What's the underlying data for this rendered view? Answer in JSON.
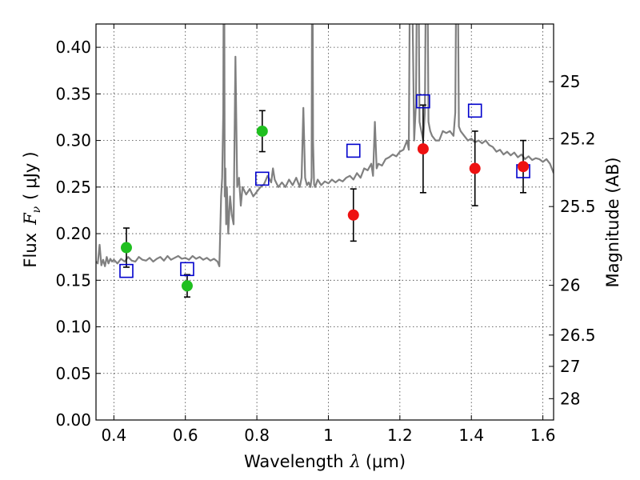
{
  "chart_data": {
    "type": "scatter",
    "title": "",
    "xlabel": "Wavelength",
    "xlabel_symbol": "λ",
    "xlabel_unit": "(μm)",
    "ylabel": "Flux",
    "ylabel_symbol": "F",
    "ylabel_subscript": "ν",
    "ylabel_unit": "μJy",
    "ylabel_right": "Magnitude (AB)",
    "xlim": [
      0.35,
      1.63
    ],
    "ylim": [
      0.0,
      0.425
    ],
    "grid": true,
    "x_ticks": [
      0.4,
      0.6,
      0.8,
      1.0,
      1.2,
      1.4,
      1.6
    ],
    "x_tick_labels": [
      "0.4",
      "0.6",
      "0.8",
      "1",
      "1.2",
      "1.4",
      "1.6"
    ],
    "y_ticks": [
      0.0,
      0.05,
      0.1,
      0.15,
      0.2,
      0.25,
      0.3,
      0.35,
      0.4
    ],
    "y_tick_labels": [
      "0.00",
      "0.05",
      "0.10",
      "0.15",
      "0.20",
      "0.25",
      "0.30",
      "0.35",
      "0.40"
    ],
    "mag_ticks": [
      25,
      25.2,
      25.5,
      26,
      26.5,
      27,
      28
    ],
    "mag_tick_labels": [
      "25",
      "25.2",
      "25.5",
      "26",
      "26.5",
      "27",
      "28"
    ],
    "colors": {
      "spectrum": "#808080",
      "green": "#1fbf1f",
      "red": "#ee1111",
      "model": "#0000cc",
      "errorbar": "#000000"
    },
    "series": [
      {
        "name": "Model spectrum",
        "kind": "line",
        "x": [
          0.35,
          0.355,
          0.36,
          0.365,
          0.37,
          0.375,
          0.38,
          0.385,
          0.39,
          0.395,
          0.4,
          0.41,
          0.42,
          0.43,
          0.44,
          0.45,
          0.46,
          0.47,
          0.48,
          0.49,
          0.5,
          0.51,
          0.52,
          0.53,
          0.54,
          0.55,
          0.56,
          0.57,
          0.58,
          0.59,
          0.6,
          0.61,
          0.62,
          0.63,
          0.64,
          0.65,
          0.66,
          0.67,
          0.68,
          0.69,
          0.695,
          0.7,
          0.703,
          0.706,
          0.708,
          0.71,
          0.712,
          0.714,
          0.716,
          0.72,
          0.725,
          0.73,
          0.735,
          0.74,
          0.745,
          0.75,
          0.755,
          0.76,
          0.77,
          0.78,
          0.79,
          0.8,
          0.81,
          0.82,
          0.83,
          0.84,
          0.845,
          0.85,
          0.86,
          0.87,
          0.88,
          0.89,
          0.9,
          0.91,
          0.92,
          0.925,
          0.93,
          0.935,
          0.94,
          0.945,
          0.95,
          0.953,
          0.955,
          0.957,
          0.96,
          0.963,
          0.97,
          0.98,
          0.99,
          1.0,
          1.01,
          1.02,
          1.03,
          1.04,
          1.05,
          1.06,
          1.07,
          1.08,
          1.09,
          1.1,
          1.11,
          1.12,
          1.125,
          1.13,
          1.135,
          1.14,
          1.15,
          1.16,
          1.17,
          1.18,
          1.19,
          1.2,
          1.21,
          1.22,
          1.225,
          1.23,
          1.24,
          1.245,
          1.25,
          1.255,
          1.26,
          1.265,
          1.27,
          1.275,
          1.28,
          1.285,
          1.29,
          1.3,
          1.31,
          1.32,
          1.33,
          1.34,
          1.35,
          1.355,
          1.36,
          1.365,
          1.37,
          1.38,
          1.39,
          1.4,
          1.41,
          1.42,
          1.43,
          1.44,
          1.45,
          1.46,
          1.47,
          1.48,
          1.49,
          1.5,
          1.51,
          1.52,
          1.53,
          1.54,
          1.55,
          1.56,
          1.57,
          1.58,
          1.59,
          1.6,
          1.61,
          1.62,
          1.63
        ],
        "y": [
          0.17,
          0.168,
          0.188,
          0.166,
          0.172,
          0.165,
          0.175,
          0.168,
          0.173,
          0.17,
          0.172,
          0.168,
          0.173,
          0.17,
          0.175,
          0.171,
          0.17,
          0.175,
          0.172,
          0.171,
          0.174,
          0.17,
          0.173,
          0.175,
          0.171,
          0.176,
          0.172,
          0.174,
          0.176,
          0.173,
          0.174,
          0.172,
          0.176,
          0.173,
          0.175,
          0.172,
          0.174,
          0.171,
          0.173,
          0.17,
          0.165,
          0.24,
          0.26,
          0.33,
          0.6,
          0.24,
          0.27,
          0.21,
          0.25,
          0.2,
          0.24,
          0.22,
          0.21,
          0.39,
          0.25,
          0.26,
          0.23,
          0.25,
          0.242,
          0.248,
          0.24,
          0.245,
          0.25,
          0.253,
          0.262,
          0.255,
          0.27,
          0.258,
          0.25,
          0.255,
          0.25,
          0.258,
          0.252,
          0.26,
          0.25,
          0.26,
          0.335,
          0.26,
          0.252,
          0.255,
          0.25,
          0.26,
          0.6,
          0.3,
          0.253,
          0.25,
          0.258,
          0.252,
          0.256,
          0.254,
          0.258,
          0.255,
          0.258,
          0.256,
          0.26,
          0.262,
          0.258,
          0.265,
          0.26,
          0.27,
          0.268,
          0.275,
          0.262,
          0.32,
          0.27,
          0.275,
          0.273,
          0.28,
          0.282,
          0.285,
          0.283,
          0.288,
          0.29,
          0.3,
          0.29,
          0.6,
          0.3,
          0.34,
          0.6,
          0.32,
          0.31,
          0.3,
          0.33,
          0.6,
          0.32,
          0.31,
          0.305,
          0.3,
          0.3,
          0.31,
          0.308,
          0.31,
          0.305,
          0.33,
          0.6,
          0.315,
          0.31,
          0.305,
          0.3,
          0.302,
          0.298,
          0.3,
          0.297,
          0.3,
          0.295,
          0.293,
          0.288,
          0.29,
          0.285,
          0.288,
          0.284,
          0.287,
          0.282,
          0.285,
          0.28,
          0.283,
          0.279,
          0.281,
          0.28,
          0.277,
          0.28,
          0.275,
          0.265
        ]
      },
      {
        "name": "Green photometry",
        "kind": "errorbar",
        "x": [
          0.435,
          0.605,
          0.815
        ],
        "y": [
          0.185,
          0.144,
          0.31
        ],
        "yerr": [
          0.021,
          0.012,
          0.022
        ]
      },
      {
        "name": "Red photometry",
        "kind": "errorbar",
        "x": [
          1.07,
          1.265,
          1.41,
          1.545
        ],
        "y": [
          0.22,
          0.291,
          0.27,
          0.272
        ],
        "yerr": [
          0.028,
          0.047,
          0.04,
          0.028
        ]
      },
      {
        "name": "Model synthetic photometry",
        "kind": "square",
        "x": [
          0.435,
          0.605,
          0.815,
          1.07,
          1.265,
          1.41,
          1.545
        ],
        "y": [
          0.16,
          0.162,
          0.259,
          0.289,
          0.342,
          0.332,
          0.267
        ]
      }
    ]
  }
}
